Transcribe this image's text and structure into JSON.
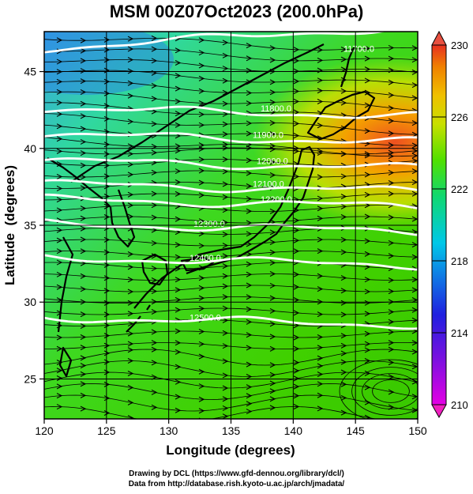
{
  "title": "MSM 00Z07Oct2023 (200.0hPa)",
  "x_axis": {
    "label": "Longitude (degrees)",
    "ticks": [
      120,
      125,
      130,
      135,
      140,
      145,
      150
    ],
    "range": [
      120,
      150
    ]
  },
  "y_axis": {
    "label": "Latitude  (degrees)",
    "ticks": [
      25,
      30,
      35,
      40,
      45
    ],
    "range": [
      22.4,
      47.6
    ]
  },
  "colorbar": {
    "ticks": [
      230,
      226,
      222,
      218,
      214,
      210
    ],
    "range": [
      210,
      230
    ],
    "colors": [
      "#e400e4",
      "#2020e0",
      "#00c8e8",
      "#10d870",
      "#50e000",
      "#c8e000",
      "#f0c000",
      "#f08000",
      "#e83020"
    ]
  },
  "contours": [
    {
      "label": "11700.0",
      "lat": 46.5
    },
    {
      "label": "11800.0",
      "lat": 42.6
    },
    {
      "label": "11900.0",
      "lat": 40.9
    },
    {
      "label": "12000.0",
      "lat": 39.2
    },
    {
      "label": "12100.0",
      "lat": 37.7
    },
    {
      "label": "12200.0",
      "lat": 36.7
    },
    {
      "label": "12300.0",
      "lat": 35.1
    },
    {
      "label": "12400.0",
      "lat": 32.9
    },
    {
      "label": "12500.0",
      "lat": 29.0
    }
  ],
  "credits": {
    "line1": "Drawing by DCL (https://www.gfd-dennou.org/library/dcl/)",
    "line2": "Data from http://database.rish.kyoto-u.ac.jp/arch/jmadata/"
  }
}
